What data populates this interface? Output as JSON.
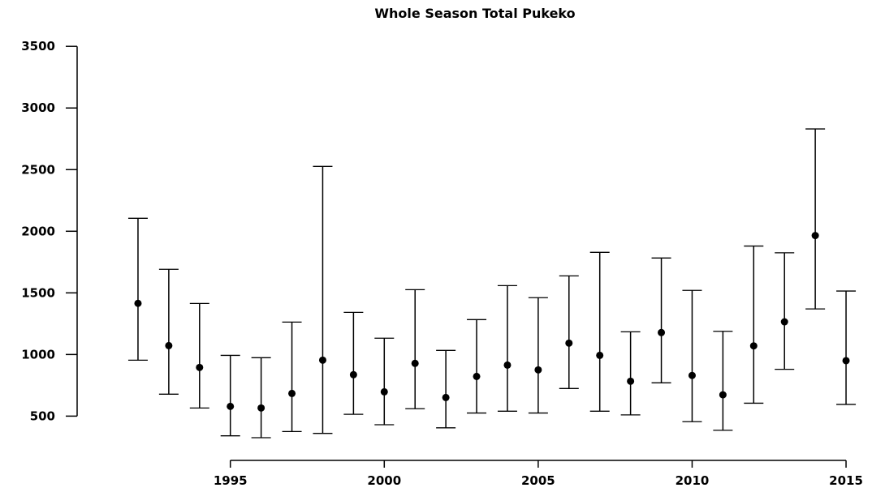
{
  "chart_data": {
    "type": "errorbar",
    "title": "Whole Season Total Pukeko",
    "x": [
      1992,
      1993,
      1994,
      1995,
      1996,
      1997,
      1998,
      1999,
      2000,
      2001,
      2002,
      2003,
      2004,
      2005,
      2006,
      2007,
      2008,
      2009,
      2010,
      2011,
      2012,
      2013,
      2014,
      2015
    ],
    "series": [
      {
        "values": [
          1415,
          1072,
          895,
          579,
          566,
          684,
          954,
          836,
          697,
          928,
          651,
          822,
          914,
          875,
          1092,
          993,
          783,
          1178,
          830,
          673,
          1070,
          1265,
          1965,
          950
        ],
        "lower": [
          954,
          678,
          566,
          340,
          325,
          375,
          360,
          515,
          430,
          560,
          405,
          525,
          540,
          525,
          724,
          540,
          510,
          770,
          455,
          385,
          605,
          880,
          1370,
          595
        ],
        "upper": [
          2105,
          1691,
          1414,
          993,
          974,
          1263,
          2526,
          1342,
          1132,
          1526,
          1033,
          1283,
          1559,
          1461,
          1638,
          1829,
          1184,
          1783,
          1520,
          1188,
          1880,
          1825,
          2830,
          1515
        ],
        "color": "#000000"
      }
    ],
    "xlim": [
      1991.5,
      2015.5
    ],
    "xticks": [
      1995,
      2000,
      2005,
      2010,
      2015
    ],
    "ylim": [
      200,
      3600
    ],
    "yticks": [
      500,
      1000,
      1500,
      2000,
      2500,
      3000,
      3500
    ]
  }
}
